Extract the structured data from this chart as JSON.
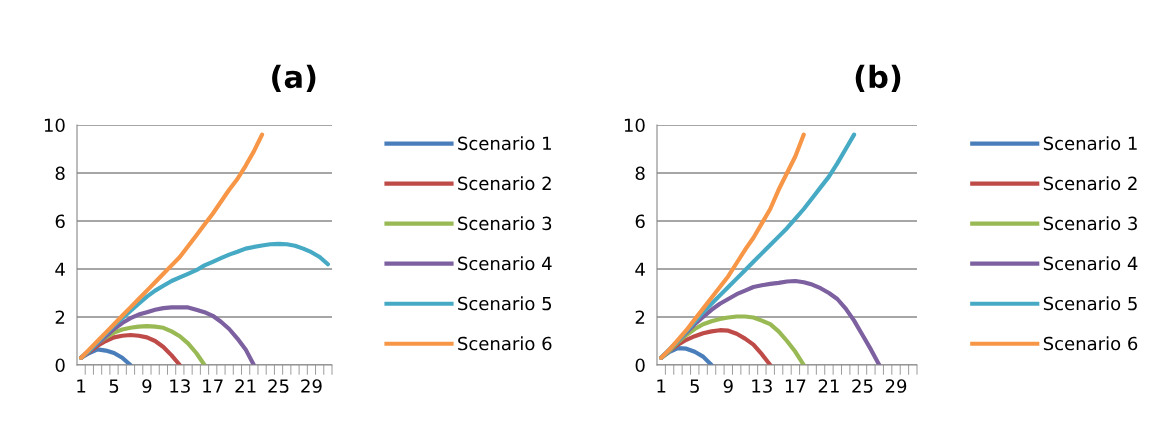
{
  "chart_data": [
    {
      "type": "line",
      "title": "(a)",
      "categories": [
        "1",
        null,
        null,
        null,
        "5",
        null,
        null,
        null,
        "9",
        null,
        null,
        null,
        "13",
        null,
        null,
        null,
        "17",
        null,
        null,
        null,
        "21",
        null,
        null,
        null,
        "25",
        null,
        null,
        null,
        "29",
        null,
        null
      ],
      "ylim": [
        0,
        10
      ],
      "yticks": [
        0,
        2,
        4,
        6,
        8,
        10
      ],
      "grid": "y",
      "legend": "right",
      "marker": "none",
      "line_style": "solid",
      "series": [
        {
          "name": "Scenario 1",
          "color": "#4a7ebb",
          "values": [
            0.3,
            0.5,
            0.65,
            0.6,
            0.5,
            0.3,
            0.0,
            null,
            null,
            null,
            null,
            null,
            null,
            null,
            null,
            null,
            null,
            null,
            null,
            null,
            null,
            null,
            null,
            null,
            null,
            null,
            null,
            null,
            null,
            null,
            null
          ]
        },
        {
          "name": "Scenario 2",
          "color": "#be4b48",
          "values": [
            0.3,
            0.55,
            0.8,
            1.0,
            1.15,
            1.22,
            1.25,
            1.22,
            1.15,
            1.0,
            0.75,
            0.4,
            0.0,
            null,
            null,
            null,
            null,
            null,
            null,
            null,
            null,
            null,
            null,
            null,
            null,
            null,
            null,
            null,
            null,
            null,
            null
          ]
        },
        {
          "name": "Scenario 3",
          "color": "#98b954",
          "values": [
            0.3,
            0.6,
            0.9,
            1.15,
            1.35,
            1.48,
            1.55,
            1.6,
            1.62,
            1.6,
            1.55,
            1.4,
            1.2,
            0.9,
            0.5,
            0.0,
            null,
            null,
            null,
            null,
            null,
            null,
            null,
            null,
            null,
            null,
            null,
            null,
            null,
            null,
            null
          ]
        },
        {
          "name": "Scenario 4",
          "color": "#7d60a0",
          "values": [
            0.3,
            0.6,
            0.9,
            1.2,
            1.5,
            1.75,
            1.95,
            2.1,
            2.2,
            2.3,
            2.37,
            2.4,
            2.4,
            2.4,
            2.3,
            2.2,
            2.05,
            1.8,
            1.5,
            1.1,
            0.65,
            0.0,
            null,
            null,
            null,
            null,
            null,
            null,
            null,
            null,
            null
          ]
        },
        {
          "name": "Scenario 5",
          "color": "#46aac5",
          "values": [
            0.3,
            0.6,
            0.95,
            1.3,
            1.65,
            1.95,
            2.25,
            2.55,
            2.85,
            3.1,
            3.3,
            3.5,
            3.65,
            3.8,
            3.95,
            4.15,
            4.3,
            4.45,
            4.6,
            4.72,
            4.85,
            4.92,
            4.98,
            5.03,
            5.05,
            5.03,
            4.97,
            4.85,
            4.7,
            4.5,
            4.2
          ]
        },
        {
          "name": "Scenario 6",
          "color": "#f79646",
          "values": [
            0.3,
            0.65,
            1.0,
            1.35,
            1.7,
            2.05,
            2.4,
            2.75,
            3.1,
            3.45,
            3.8,
            4.15,
            4.5,
            4.95,
            5.4,
            5.85,
            6.3,
            6.8,
            7.3,
            7.75,
            8.3,
            8.9,
            9.6,
            null,
            null,
            null,
            null,
            null,
            null,
            null,
            null
          ]
        }
      ]
    },
    {
      "type": "line",
      "title": "(b)",
      "categories": [
        "1",
        null,
        null,
        null,
        "5",
        null,
        null,
        null,
        "9",
        null,
        null,
        null,
        "13",
        null,
        null,
        null,
        "17",
        null,
        null,
        null,
        "21",
        null,
        null,
        null,
        "25",
        null,
        null,
        null,
        "29",
        null,
        null
      ],
      "ylim": [
        0,
        10
      ],
      "yticks": [
        0,
        2,
        4,
        6,
        8,
        10
      ],
      "grid": "y",
      "legend": "right",
      "marker": "none",
      "line_style": "solid",
      "series": [
        {
          "name": "Scenario 1",
          "color": "#4a7ebb",
          "values": [
            0.3,
            0.55,
            0.7,
            0.68,
            0.55,
            0.35,
            0.0,
            null,
            null,
            null,
            null,
            null,
            null,
            null,
            null,
            null,
            null,
            null,
            null,
            null,
            null,
            null,
            null,
            null,
            null,
            null,
            null,
            null,
            null,
            null,
            null
          ]
        },
        {
          "name": "Scenario 2",
          "color": "#be4b48",
          "values": [
            0.3,
            0.6,
            0.85,
            1.05,
            1.2,
            1.32,
            1.4,
            1.45,
            1.43,
            1.3,
            1.1,
            0.85,
            0.45,
            0.0,
            null,
            null,
            null,
            null,
            null,
            null,
            null,
            null,
            null,
            null,
            null,
            null,
            null,
            null,
            null,
            null,
            null
          ]
        },
        {
          "name": "Scenario 3",
          "color": "#98b954",
          "values": [
            0.3,
            0.6,
            0.95,
            1.25,
            1.5,
            1.7,
            1.82,
            1.92,
            1.98,
            2.02,
            2.02,
            1.98,
            1.85,
            1.7,
            1.4,
            1.0,
            0.55,
            0.0,
            null,
            null,
            null,
            null,
            null,
            null,
            null,
            null,
            null,
            null,
            null,
            null,
            null
          ]
        },
        {
          "name": "Scenario 4",
          "color": "#7d60a0",
          "values": [
            0.3,
            0.65,
            1.0,
            1.35,
            1.7,
            2.0,
            2.3,
            2.55,
            2.75,
            2.95,
            3.1,
            3.25,
            3.32,
            3.38,
            3.42,
            3.48,
            3.5,
            3.45,
            3.35,
            3.2,
            3.0,
            2.75,
            2.35,
            1.85,
            1.25,
            0.65,
            0.0,
            null,
            null,
            null,
            null
          ]
        },
        {
          "name": "Scenario 5",
          "color": "#46aac5",
          "values": [
            0.3,
            0.65,
            1.0,
            1.4,
            1.8,
            2.2,
            2.55,
            2.9,
            3.25,
            3.6,
            3.95,
            4.3,
            4.65,
            5.0,
            5.35,
            5.7,
            6.1,
            6.5,
            6.95,
            7.4,
            7.85,
            8.4,
            9.0,
            9.6,
            null,
            null,
            null,
            null,
            null,
            null,
            null
          ]
        },
        {
          "name": "Scenario 6",
          "color": "#f79646",
          "values": [
            0.3,
            0.65,
            1.05,
            1.45,
            1.9,
            2.35,
            2.8,
            3.25,
            3.7,
            4.25,
            4.8,
            5.3,
            5.9,
            6.5,
            7.3,
            8.0,
            8.7,
            9.6,
            null,
            null,
            null,
            null,
            null,
            null,
            null,
            null,
            null,
            null,
            null,
            null,
            null
          ]
        }
      ]
    }
  ]
}
